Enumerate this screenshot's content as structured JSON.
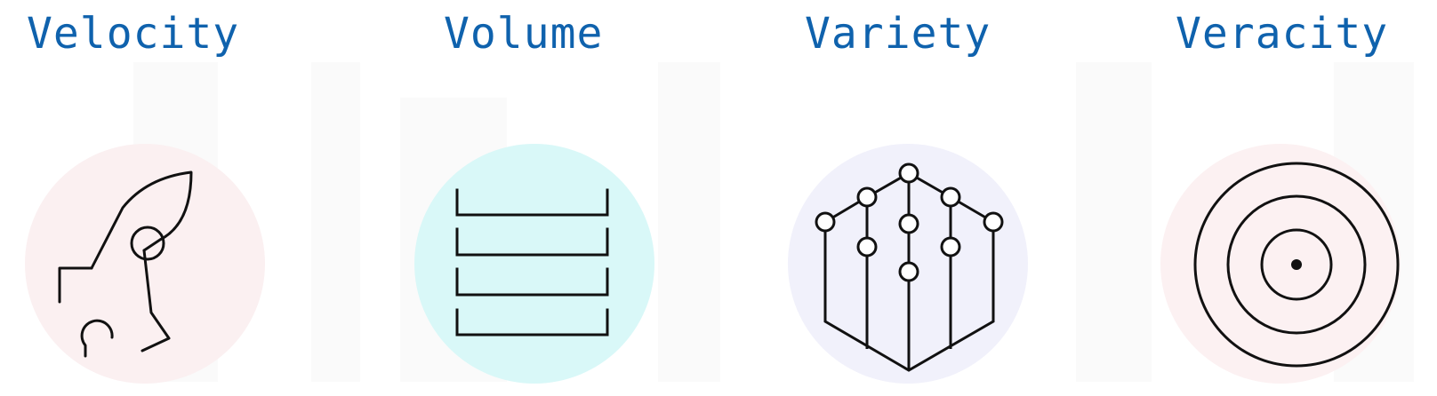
{
  "columns": [
    {
      "label": "Velocity",
      "icon": "rocket-icon",
      "circle_color": "#fbf0f1"
    },
    {
      "label": "Volume",
      "icon": "stacked-trays-icon",
      "circle_color": "#d9f8f8"
    },
    {
      "label": "Variety",
      "icon": "hex-network-icon",
      "circle_color": "#f1f1fb"
    },
    {
      "label": "Veracity",
      "icon": "target-icon",
      "circle_color": "#fcf1f2"
    }
  ],
  "colors": {
    "title": "#0f62ad",
    "stroke": "#111111"
  }
}
